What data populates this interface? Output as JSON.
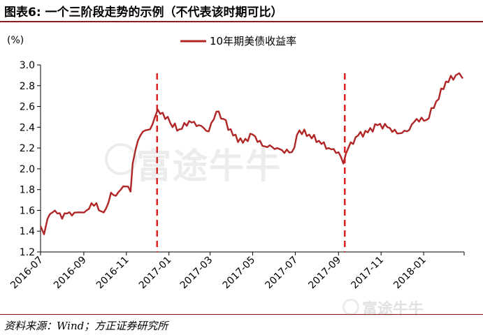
{
  "header": {
    "title": "图表6:    一个三阶段走势的示例（不代表该时期可比）"
  },
  "footer": {
    "source": "资料来源：Wind；方正证券研究所"
  },
  "watermark": {
    "main": "富途牛牛",
    "small": "富途牛牛"
  },
  "colors": {
    "line": "#b02525",
    "annotation": "#e02020",
    "rule": "#8b1a1a"
  },
  "chart_data": {
    "type": "line",
    "title": "",
    "ylabel": "(%)",
    "xlabel": "",
    "ylim": [
      1.2,
      3.0
    ],
    "yticks": [
      "1.2",
      "1.4",
      "1.6",
      "1.8",
      "2.0",
      "2.2",
      "2.4",
      "2.6",
      "2.8",
      "3.0"
    ],
    "xticks": [
      "2016-07",
      "2016-09",
      "2016-11",
      "2017-01",
      "2017-03",
      "2017-05",
      "2017-07",
      "2017-09",
      "2017-11",
      "2018-01"
    ],
    "legend": {
      "position": "top-center",
      "entries": [
        "10年期美债收益率"
      ]
    },
    "grid": false,
    "annotations": [
      {
        "type": "vline",
        "style": "dashed",
        "x": "2016-12-15"
      },
      {
        "type": "vline",
        "style": "dashed",
        "x": "2017-09-10"
      }
    ],
    "series": [
      {
        "name": "10年期美债收益率",
        "x": [
          "2016-07-01",
          "2016-07-06",
          "2016-07-11",
          "2016-07-18",
          "2016-07-25",
          "2016-08-01",
          "2016-08-08",
          "2016-08-15",
          "2016-08-22",
          "2016-08-29",
          "2016-09-05",
          "2016-09-12",
          "2016-09-19",
          "2016-09-26",
          "2016-10-03",
          "2016-10-10",
          "2016-10-17",
          "2016-10-24",
          "2016-10-31",
          "2016-11-07",
          "2016-11-10",
          "2016-11-14",
          "2016-11-21",
          "2016-11-28",
          "2016-12-05",
          "2016-12-12",
          "2016-12-16",
          "2016-12-23",
          "2017-01-03",
          "2017-01-16",
          "2017-01-30",
          "2017-02-13",
          "2017-02-27",
          "2017-03-10",
          "2017-03-20",
          "2017-04-03",
          "2017-04-17",
          "2017-05-01",
          "2017-05-15",
          "2017-05-29",
          "2017-06-12",
          "2017-06-26",
          "2017-07-07",
          "2017-07-21",
          "2017-08-04",
          "2017-08-18",
          "2017-09-01",
          "2017-09-08",
          "2017-09-15",
          "2017-09-29",
          "2017-10-13",
          "2017-10-27",
          "2017-11-10",
          "2017-11-24",
          "2017-12-08",
          "2017-12-22",
          "2018-01-05",
          "2018-01-19",
          "2018-02-02",
          "2018-02-16",
          "2018-02-21",
          "2018-02-26"
        ],
        "values": [
          1.45,
          1.37,
          1.52,
          1.58,
          1.57,
          1.52,
          1.57,
          1.55,
          1.58,
          1.58,
          1.6,
          1.67,
          1.67,
          1.59,
          1.62,
          1.77,
          1.74,
          1.8,
          1.83,
          1.78,
          2.05,
          2.18,
          2.32,
          2.37,
          2.38,
          2.5,
          2.57,
          2.54,
          2.44,
          2.38,
          2.46,
          2.42,
          2.36,
          2.55,
          2.48,
          2.32,
          2.25,
          2.33,
          2.22,
          2.21,
          2.18,
          2.16,
          2.37,
          2.33,
          2.27,
          2.2,
          2.16,
          2.05,
          2.2,
          2.32,
          2.35,
          2.42,
          2.4,
          2.34,
          2.36,
          2.48,
          2.47,
          2.65,
          2.84,
          2.9,
          2.92,
          2.87
        ]
      }
    ]
  }
}
